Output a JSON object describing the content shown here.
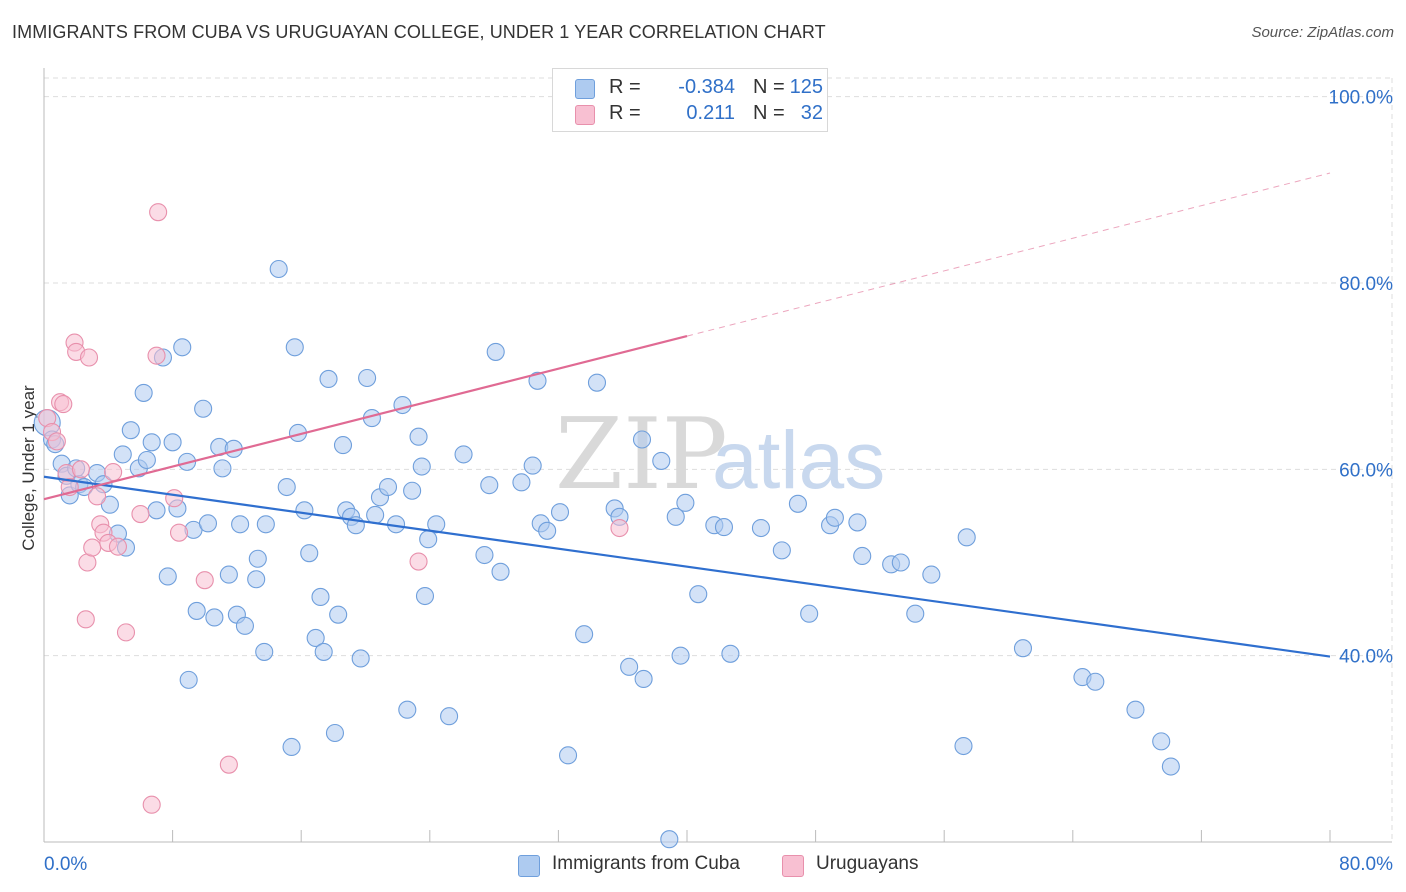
{
  "header": {
    "title": "IMMIGRANTS FROM CUBA VS URUGUAYAN COLLEGE, UNDER 1 YEAR CORRELATION CHART",
    "source": "Source: ZipAtlas.com"
  },
  "watermark": {
    "part1": "ZIP",
    "part2": "atlas"
  },
  "legend": {
    "rows": [
      {
        "r_label": "R =",
        "r_value": "-0.384",
        "n_label": "N =",
        "n_value": "125"
      },
      {
        "r_label": "R =",
        "r_value": "0.211",
        "n_label": "N =",
        "n_value": "32"
      }
    ]
  },
  "colors": {
    "blue_fill": "#aecbf0",
    "blue_stroke": "#6f9fdc",
    "blue_line": "#2f6fcf",
    "pink_fill": "#f8c0d2",
    "pink_stroke": "#e890ac",
    "pink_line": "#e06a93",
    "axis_label": "#3070c8",
    "grid": "#dddddd"
  },
  "chart_data": {
    "type": "scatter",
    "title": "IMMIGRANTS FROM CUBA VS URUGUAYAN COLLEGE, UNDER 1 YEAR CORRELATION CHART",
    "xlabel": "",
    "ylabel": "College, Under 1 year",
    "xlim": [
      0,
      80
    ],
    "ylim": [
      20,
      102
    ],
    "x_tick_labels": [
      "0.0%",
      "80.0%"
    ],
    "y_ticks": [
      {
        "value": 100,
        "label": "100.0%"
      },
      {
        "value": 80,
        "label": "80.0%"
      },
      {
        "value": 60,
        "label": "60.0%"
      },
      {
        "value": 40,
        "label": "40.0%"
      }
    ],
    "grid": true,
    "legend_position": "top-center",
    "series": [
      {
        "name": "Immigrants from Cuba",
        "trend": {
          "x0": 0,
          "y0": 59.2,
          "x1": 80,
          "y1": 39.9
        },
        "points": [
          [
            0.2,
            65.0
          ],
          [
            0.5,
            63.2
          ],
          [
            0.7,
            62.7
          ],
          [
            1.1,
            60.6
          ],
          [
            1.4,
            59.3
          ],
          [
            1.6,
            57.2
          ],
          [
            2.0,
            60.1
          ],
          [
            2.2,
            58.4
          ],
          [
            2.5,
            58.1
          ],
          [
            3.3,
            59.6
          ],
          [
            3.7,
            58.4
          ],
          [
            4.1,
            56.2
          ],
          [
            4.6,
            53.1
          ],
          [
            5.1,
            51.6
          ],
          [
            4.9,
            61.6
          ],
          [
            5.4,
            64.2
          ],
          [
            5.9,
            60.1
          ],
          [
            6.2,
            68.2
          ],
          [
            6.4,
            61.0
          ],
          [
            6.7,
            62.9
          ],
          [
            7.0,
            55.6
          ],
          [
            7.4,
            72.0
          ],
          [
            7.7,
            48.5
          ],
          [
            8.0,
            62.9
          ],
          [
            8.3,
            55.8
          ],
          [
            8.6,
            73.1
          ],
          [
            8.9,
            60.8
          ],
          [
            9.0,
            37.4
          ],
          [
            9.3,
            53.5
          ],
          [
            9.5,
            44.8
          ],
          [
            9.9,
            66.5
          ],
          [
            10.2,
            54.2
          ],
          [
            10.6,
            44.1
          ],
          [
            10.9,
            62.4
          ],
          [
            11.1,
            60.1
          ],
          [
            11.5,
            48.7
          ],
          [
            11.8,
            62.2
          ],
          [
            12.0,
            44.4
          ],
          [
            12.2,
            54.1
          ],
          [
            12.5,
            43.2
          ],
          [
            13.2,
            48.2
          ],
          [
            13.3,
            50.4
          ],
          [
            13.7,
            40.4
          ],
          [
            13.8,
            54.1
          ],
          [
            14.6,
            81.5
          ],
          [
            15.1,
            58.1
          ],
          [
            15.4,
            30.2
          ],
          [
            15.6,
            73.1
          ],
          [
            15.8,
            63.9
          ],
          [
            16.2,
            55.6
          ],
          [
            16.5,
            51.0
          ],
          [
            16.9,
            41.9
          ],
          [
            17.2,
            46.3
          ],
          [
            17.4,
            40.4
          ],
          [
            17.7,
            69.7
          ],
          [
            18.1,
            31.7
          ],
          [
            18.3,
            44.4
          ],
          [
            18.6,
            62.6
          ],
          [
            18.8,
            55.6
          ],
          [
            19.1,
            54.9
          ],
          [
            19.4,
            54.0
          ],
          [
            19.7,
            39.7
          ],
          [
            20.1,
            69.8
          ],
          [
            20.4,
            65.5
          ],
          [
            20.6,
            55.1
          ],
          [
            20.9,
            57.0
          ],
          [
            21.4,
            58.1
          ],
          [
            21.9,
            54.1
          ],
          [
            22.3,
            66.9
          ],
          [
            22.6,
            34.2
          ],
          [
            22.9,
            57.7
          ],
          [
            23.3,
            63.5
          ],
          [
            23.5,
            60.3
          ],
          [
            23.7,
            46.4
          ],
          [
            23.9,
            52.5
          ],
          [
            24.4,
            54.1
          ],
          [
            25.2,
            33.5
          ],
          [
            26.1,
            61.6
          ],
          [
            27.4,
            50.8
          ],
          [
            27.7,
            58.3
          ],
          [
            28.1,
            72.6
          ],
          [
            28.4,
            49.0
          ],
          [
            29.7,
            58.6
          ],
          [
            30.4,
            60.4
          ],
          [
            30.7,
            69.5
          ],
          [
            30.9,
            54.2
          ],
          [
            31.3,
            53.4
          ],
          [
            32.1,
            55.4
          ],
          [
            32.6,
            29.3
          ],
          [
            33.6,
            42.3
          ],
          [
            34.4,
            69.3
          ],
          [
            35.5,
            55.8
          ],
          [
            35.8,
            54.9
          ],
          [
            36.4,
            38.8
          ],
          [
            37.2,
            63.2
          ],
          [
            37.3,
            37.5
          ],
          [
            38.4,
            60.9
          ],
          [
            38.9,
            20.3
          ],
          [
            39.3,
            54.9
          ],
          [
            39.6,
            40.0
          ],
          [
            39.9,
            56.4
          ],
          [
            40.7,
            46.6
          ],
          [
            41.7,
            54.0
          ],
          [
            42.3,
            53.8
          ],
          [
            42.7,
            40.2
          ],
          [
            44.6,
            53.7
          ],
          [
            45.9,
            51.3
          ],
          [
            46.9,
            56.3
          ],
          [
            47.6,
            44.5
          ],
          [
            48.9,
            54.0
          ],
          [
            49.2,
            54.8
          ],
          [
            50.6,
            54.3
          ],
          [
            50.9,
            50.7
          ],
          [
            52.7,
            49.8
          ],
          [
            53.3,
            50.0
          ],
          [
            54.2,
            44.5
          ],
          [
            55.2,
            48.7
          ],
          [
            57.2,
            30.3
          ],
          [
            57.4,
            52.7
          ],
          [
            60.9,
            40.8
          ],
          [
            64.6,
            37.7
          ],
          [
            65.4,
            37.2
          ],
          [
            67.9,
            34.2
          ],
          [
            69.5,
            30.8
          ],
          [
            70.1,
            28.1
          ]
        ]
      },
      {
        "name": "Uruguayans",
        "trend": {
          "x0": 0,
          "y0": 56.8,
          "x1": 40,
          "y1": 74.3,
          "dash_to_x": 80,
          "dash_to_y": 91.8
        },
        "points": [
          [
            0.2,
            65.5
          ],
          [
            0.5,
            64.0
          ],
          [
            0.8,
            63.0
          ],
          [
            1.0,
            67.2
          ],
          [
            1.2,
            67.0
          ],
          [
            1.4,
            59.6
          ],
          [
            1.6,
            58.1
          ],
          [
            1.9,
            73.6
          ],
          [
            2.0,
            72.6
          ],
          [
            2.3,
            60.0
          ],
          [
            2.6,
            43.9
          ],
          [
            2.7,
            50.0
          ],
          [
            2.8,
            72.0
          ],
          [
            3.0,
            51.6
          ],
          [
            3.3,
            57.1
          ],
          [
            3.5,
            54.1
          ],
          [
            3.7,
            53.2
          ],
          [
            4.0,
            52.1
          ],
          [
            4.3,
            59.7
          ],
          [
            4.6,
            51.7
          ],
          [
            5.1,
            42.5
          ],
          [
            6.0,
            55.2
          ],
          [
            6.7,
            24.0
          ],
          [
            7.0,
            72.2
          ],
          [
            7.1,
            87.6
          ],
          [
            8.1,
            56.9
          ],
          [
            8.4,
            53.2
          ],
          [
            10.0,
            48.1
          ],
          [
            11.5,
            28.3
          ],
          [
            23.3,
            50.1
          ],
          [
            35.3,
            100.6
          ],
          [
            35.8,
            53.7
          ]
        ]
      }
    ]
  },
  "bottom_legend": [
    {
      "label": "Immigrants from Cuba"
    },
    {
      "label": "Uruguayans"
    }
  ]
}
